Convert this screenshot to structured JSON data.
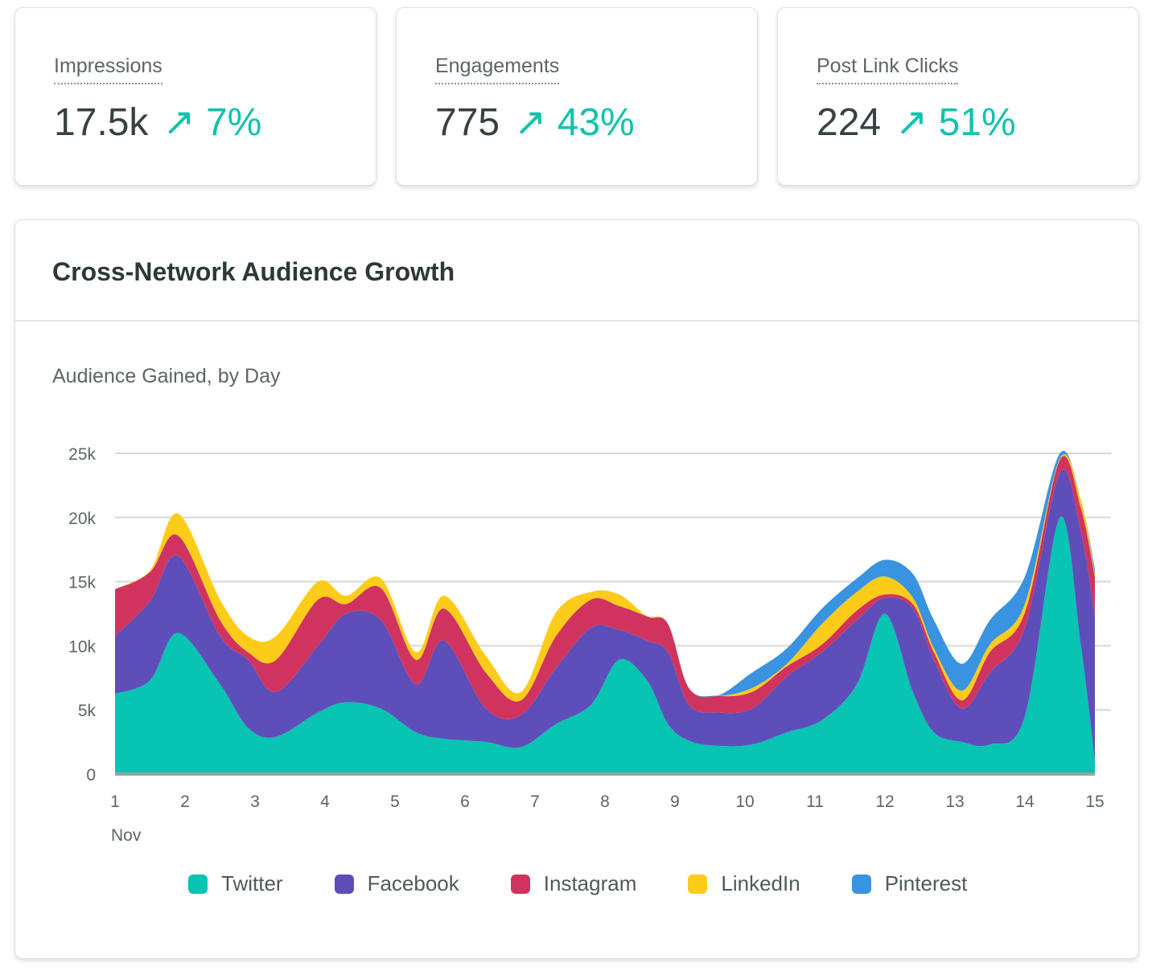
{
  "metrics": [
    {
      "label": "Impressions",
      "value": "17.5k",
      "delta": "7%",
      "trend_icon": "arrow-up-right-icon"
    },
    {
      "label": "Engagements",
      "value": "775",
      "delta": "43%",
      "trend_icon": "arrow-up-right-icon"
    },
    {
      "label": "Post Link Clicks",
      "value": "224",
      "delta": "51%",
      "trend_icon": "arrow-up-right-icon"
    }
  ],
  "colors": {
    "positive": "#0ec3ad"
  },
  "chart_card": {
    "title": "Cross-Network Audience Growth",
    "subtitle": "Audience Gained, by Day"
  },
  "chart_data": {
    "type": "area",
    "stacked": true,
    "title": "Audience Gained, by Day",
    "xlabel": "Nov",
    "x_ticks": [
      "1",
      "2",
      "3",
      "4",
      "5",
      "6",
      "7",
      "8",
      "9",
      "10",
      "11",
      "12",
      "13",
      "14",
      "15"
    ],
    "y_ticks": [
      "0",
      "5k",
      "10k",
      "15k",
      "20k",
      "25k"
    ],
    "xlim": [
      1,
      15
    ],
    "ylim": [
      0,
      25000
    ],
    "grid": true,
    "legend": "bottom",
    "x": [
      1.0,
      1.5,
      1.9,
      2.5,
      2.9,
      3.3,
      3.9,
      4.3,
      4.8,
      5.3,
      5.7,
      6.3,
      6.8,
      7.3,
      7.8,
      8.2,
      8.6,
      8.9,
      9.2,
      9.6,
      10.1,
      10.6,
      11.1,
      11.6,
      12.0,
      12.4,
      12.7,
      13.1,
      13.5,
      14.0,
      14.5,
      14.8,
      15.0
    ],
    "series": [
      {
        "name": "Twitter",
        "color": "#08c4b2",
        "values": [
          6250,
          7300,
          11000,
          7000,
          3600,
          2900,
          4800,
          5600,
          5100,
          3250,
          2750,
          2500,
          2100,
          3900,
          5400,
          8900,
          7300,
          3900,
          2600,
          2200,
          2300,
          3250,
          4200,
          7000,
          12500,
          6400,
          3250,
          2500,
          2300,
          4500,
          20000,
          10000,
          1000
        ]
      },
      {
        "name": "Facebook",
        "color": "#5e4eba",
        "values": [
          4500,
          6200,
          6000,
          3750,
          5300,
          3500,
          5200,
          6900,
          6900,
          3750,
          7650,
          2600,
          2500,
          4350,
          6000,
          2350,
          3100,
          5600,
          2800,
          2600,
          2800,
          4350,
          5300,
          5000,
          1250,
          6500,
          5650,
          2600,
          5600,
          6900,
          3500,
          8900,
          11300
        ]
      },
      {
        "name": "Instagram",
        "color": "#d0345e",
        "values": [
          3650,
          2250,
          1600,
          1250,
          600,
          2500,
          3600,
          750,
          2500,
          1900,
          2500,
          2800,
          1150,
          2500,
          2200,
          1850,
          1900,
          2200,
          1300,
          1300,
          1300,
          800,
          600,
          750,
          250,
          350,
          600,
          650,
          1600,
          1200,
          1000,
          1850,
          3100
        ]
      },
      {
        "name": "LinkedIn",
        "color": "#fdcc1a",
        "values": [
          0,
          100,
          1700,
          1600,
          1250,
          1850,
          1400,
          650,
          750,
          600,
          1000,
          1300,
          650,
          1850,
          600,
          900,
          0,
          0,
          0,
          0,
          300,
          200,
          1600,
          1450,
          1400,
          500,
          300,
          750,
          600,
          650,
          100,
          650,
          200
        ]
      },
      {
        "name": "Pinterest",
        "color": "#3a93e0",
        "values": [
          0,
          0,
          0,
          0,
          0,
          0,
          0,
          0,
          0,
          0,
          0,
          0,
          0,
          0,
          0,
          0,
          0,
          0,
          0,
          0,
          1200,
          1200,
          1200,
          1050,
          1300,
          1850,
          2200,
          2100,
          1900,
          2150,
          400,
          0,
          400
        ]
      }
    ]
  }
}
